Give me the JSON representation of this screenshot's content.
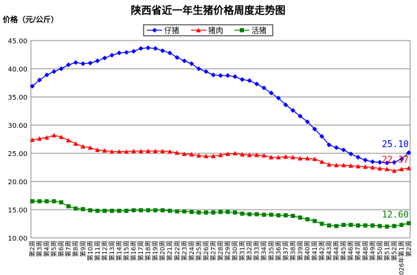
{
  "chart_data": {
    "type": "line",
    "title": "陕西省近一年生猪价格周度走势图",
    "ylabel": "价格（元/公斤）",
    "ylim": [
      10,
      45
    ],
    "yticks": [
      "10.00",
      "15.00",
      "20.00",
      "25.00",
      "30.00",
      "35.00",
      "40.00",
      "45.00"
    ],
    "grid": "horizontal",
    "legend_position": "top",
    "categories": [
      "第2周",
      "第3周",
      "第4周",
      "第5周",
      "第6周",
      "第7周",
      "第8周",
      "第9周",
      "第10周",
      "第11周",
      "第12周",
      "第13周",
      "第14周",
      "第15周",
      "第16周",
      "第17周",
      "第18周",
      "第19周",
      "第20周",
      "第21周",
      "第22周",
      "第23周",
      "第24周",
      "第25周",
      "第26周",
      "第27周",
      "第28周",
      "第29周",
      "第30周",
      "第31周",
      "第32周",
      "第33周",
      "第34周",
      "第35周",
      "第36周",
      "第37周",
      "第38周",
      "第39周",
      "第40周",
      "第41周",
      "第42周",
      "第43周",
      "第44周",
      "第45周",
      "第46周",
      "第47周",
      "第48周",
      "第49周",
      "第50周",
      "第51周",
      "第52周",
      "2026年第1周",
      "第2周"
    ],
    "series": [
      {
        "name": "仔猪",
        "color": "#0000ff",
        "marker": "diamond",
        "values": [
          36.9,
          38.0,
          38.9,
          39.5,
          40.0,
          40.7,
          41.1,
          40.9,
          41.0,
          41.4,
          41.9,
          42.4,
          42.8,
          42.9,
          43.1,
          43.6,
          43.7,
          43.6,
          43.2,
          42.8,
          42.0,
          41.4,
          40.9,
          40.0,
          39.5,
          38.9,
          38.8,
          38.8,
          38.6,
          38.1,
          37.9,
          37.3,
          36.6,
          35.7,
          34.8,
          33.6,
          32.6,
          31.6,
          30.6,
          29.3,
          28.0,
          26.5,
          26.0,
          25.6,
          24.9,
          24.3,
          23.8,
          23.5,
          23.4,
          23.3,
          23.4,
          24.0,
          25.1
        ]
      },
      {
        "name": "猪肉",
        "color": "#ff0000",
        "marker": "triangle",
        "values": [
          27.4,
          27.6,
          27.8,
          28.2,
          27.9,
          27.3,
          26.7,
          26.2,
          26.0,
          25.6,
          25.5,
          25.3,
          25.3,
          25.3,
          25.4,
          25.4,
          25.4,
          25.4,
          25.4,
          25.3,
          25.1,
          24.9,
          24.8,
          24.6,
          24.5,
          24.5,
          24.7,
          24.9,
          25.0,
          24.8,
          24.7,
          24.7,
          24.6,
          24.3,
          24.3,
          24.4,
          24.3,
          24.1,
          24.1,
          24.0,
          23.5,
          23.0,
          22.9,
          22.9,
          22.8,
          22.7,
          22.6,
          22.5,
          22.3,
          22.2,
          21.9,
          22.2,
          22.37
        ]
      },
      {
        "name": "活猪",
        "color": "#008000",
        "marker": "square",
        "values": [
          16.5,
          16.5,
          16.5,
          16.5,
          16.3,
          15.6,
          15.2,
          15.1,
          14.9,
          14.8,
          14.8,
          14.8,
          14.8,
          14.8,
          14.9,
          14.9,
          14.9,
          14.9,
          14.9,
          14.8,
          14.7,
          14.7,
          14.6,
          14.5,
          14.5,
          14.5,
          14.6,
          14.6,
          14.5,
          14.3,
          14.2,
          14.2,
          14.1,
          14.1,
          14.0,
          14.0,
          13.9,
          13.6,
          13.3,
          13.0,
          12.5,
          12.2,
          12.1,
          12.3,
          12.3,
          12.2,
          12.2,
          12.2,
          12.1,
          12.0,
          12.1,
          12.3,
          12.6
        ]
      }
    ],
    "annotations": [
      {
        "series": "仔猪",
        "text": "25.10"
      },
      {
        "series": "猪肉",
        "text": "22.37"
      },
      {
        "series": "活猪",
        "text": "12.60"
      }
    ]
  }
}
